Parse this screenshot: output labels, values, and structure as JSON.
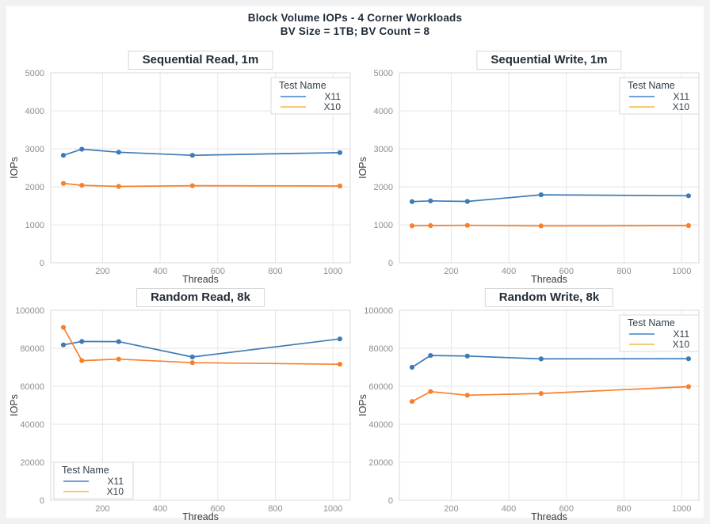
{
  "page": {
    "title_line1": "Block Volume IOPs - 4 Corner Workloads",
    "title_line2": "BV Size = 1TB; BV Count = 8"
  },
  "colors": {
    "x11": "#3d7bb6",
    "x10": "#f8802b",
    "legend_x11": "#5a94cf",
    "legend_x10": "#f2c261",
    "grid": "#e6e6e6",
    "border": "#d8d8d8",
    "accent_background": "#f1f2f3"
  },
  "legend": {
    "title": "Test Name",
    "entries": [
      "X11",
      "X10"
    ]
  },
  "axes": {
    "xlabel": "Threads",
    "ylabel": "IOPs",
    "x_ticks": [
      200,
      400,
      600,
      800,
      1000
    ],
    "x_range": [
      20,
      1060
    ]
  },
  "chart_data": [
    {
      "type": "line",
      "title": "Sequential Read, 1m",
      "xlabel": "Threads",
      "ylabel": "IOPs",
      "x": [
        64,
        128,
        256,
        512,
        1024
      ],
      "series": [
        {
          "name": "X11",
          "values": [
            2830,
            2990,
            2910,
            2830,
            2900
          ]
        },
        {
          "name": "X10",
          "values": [
            2090,
            2040,
            2010,
            2030,
            2020
          ]
        }
      ],
      "ylim": [
        0,
        5000
      ],
      "y_ticks": [
        0,
        1000,
        2000,
        3000,
        4000,
        5000
      ],
      "grid": true,
      "legend_position": "top-right"
    },
    {
      "type": "line",
      "title": "Sequential Write, 1m",
      "xlabel": "Threads",
      "ylabel": "IOPs",
      "x": [
        64,
        128,
        256,
        512,
        1024
      ],
      "series": [
        {
          "name": "X11",
          "values": [
            1610,
            1630,
            1615,
            1790,
            1765
          ]
        },
        {
          "name": "X10",
          "values": [
            975,
            980,
            985,
            970,
            980
          ]
        }
      ],
      "ylim": [
        0,
        5000
      ],
      "y_ticks": [
        0,
        1000,
        2000,
        3000,
        4000,
        5000
      ],
      "grid": true,
      "legend_position": "top-right"
    },
    {
      "type": "line",
      "title": "Random Read, 8k",
      "xlabel": "Threads",
      "ylabel": "IOPs",
      "x": [
        64,
        128,
        256,
        512,
        1024
      ],
      "series": [
        {
          "name": "X11",
          "values": [
            81800,
            83600,
            83500,
            75400,
            84900
          ]
        },
        {
          "name": "X10",
          "values": [
            91000,
            73500,
            74300,
            72400,
            71600
          ]
        }
      ],
      "ylim": [
        0,
        100000
      ],
      "y_ticks": [
        0,
        20000,
        40000,
        60000,
        80000,
        100000
      ],
      "grid": true,
      "legend_position": "bottom-left"
    },
    {
      "type": "line",
      "title": "Random Write, 8k",
      "xlabel": "Threads",
      "ylabel": "IOPs",
      "x": [
        64,
        128,
        256,
        512,
        1024
      ],
      "series": [
        {
          "name": "X11",
          "values": [
            70000,
            76200,
            75900,
            74400,
            74500
          ]
        },
        {
          "name": "X10",
          "values": [
            52000,
            57200,
            55300,
            56200,
            59800
          ]
        }
      ],
      "ylim": [
        0,
        100000
      ],
      "y_ticks": [
        0,
        20000,
        40000,
        60000,
        80000,
        100000
      ],
      "grid": true,
      "legend_position": "top-right"
    }
  ]
}
